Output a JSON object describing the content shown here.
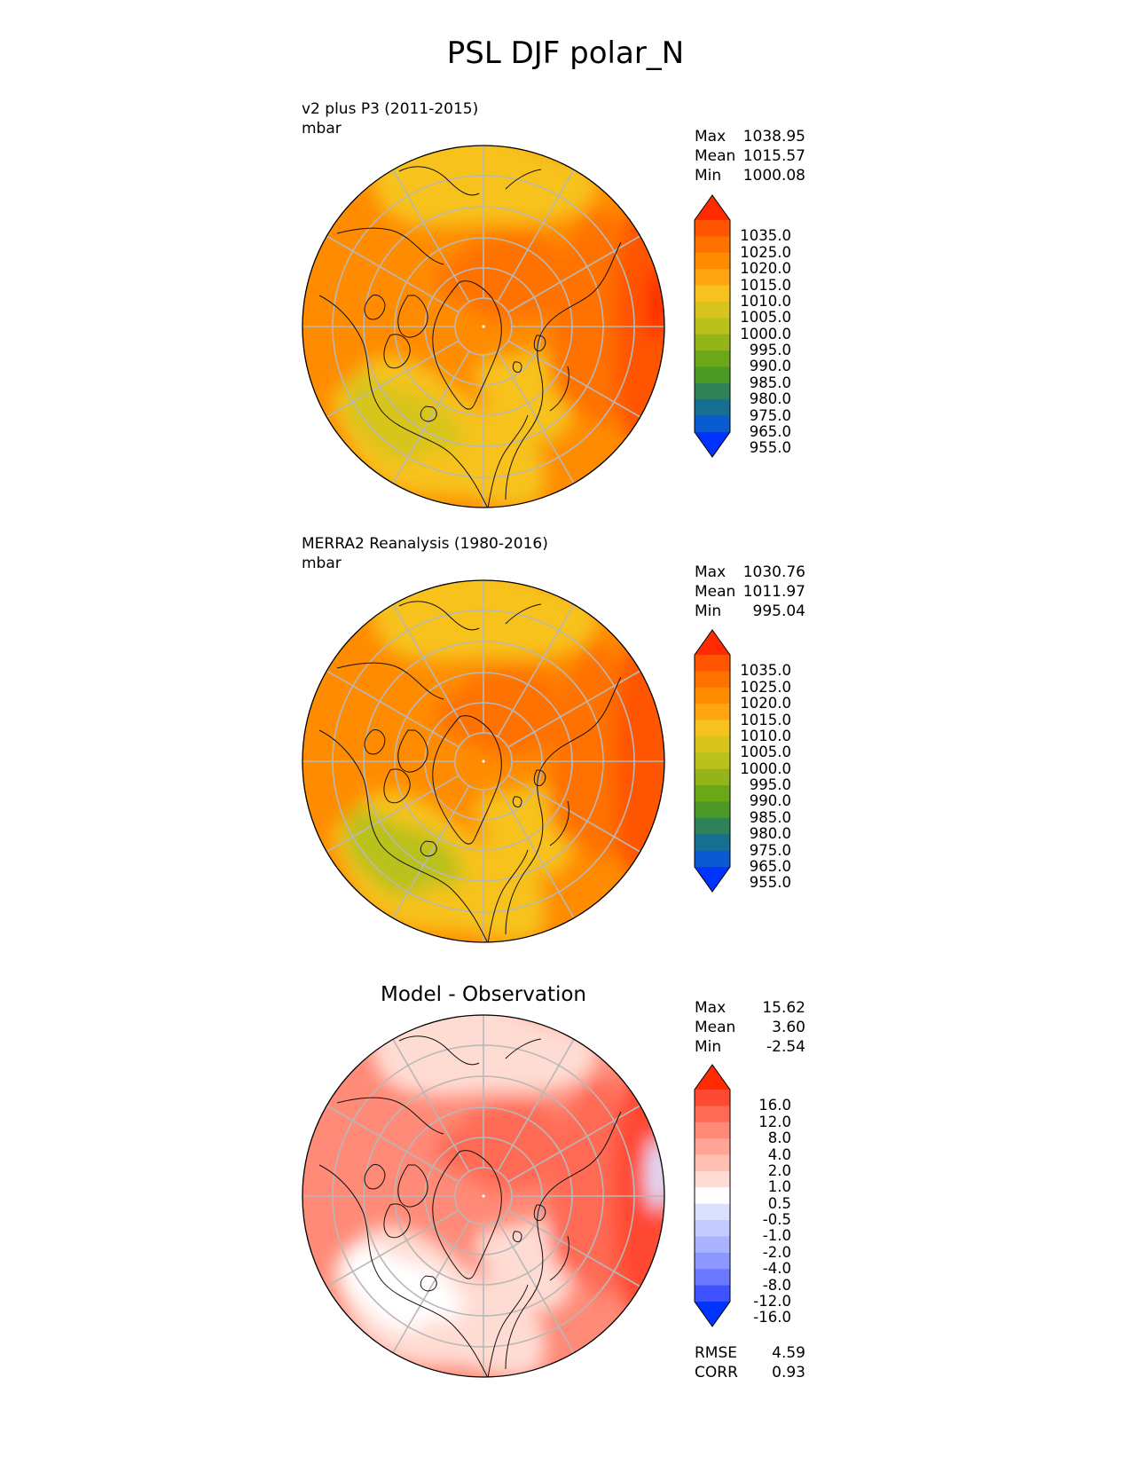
{
  "figure": {
    "title": "PSL DJF polar_N"
  },
  "panels": [
    {
      "id": "test",
      "title_lines": [
        "v2 plus P3 (2011-2015)",
        "mbar"
      ],
      "stats": [
        {
          "label": "Max",
          "value": "1038.95"
        },
        {
          "label": "Mean",
          "value": "1015.57"
        },
        {
          "label": "Min",
          "value": "1000.08"
        }
      ],
      "colorbar": {
        "ticks": [
          "1035.0",
          "1025.0",
          "1020.0",
          "1015.0",
          "1010.0",
          "1005.0",
          "1000.0",
          "995.0",
          "990.0",
          "985.0",
          "980.0",
          "975.0",
          "965.0",
          "955.0"
        ],
        "colors": [
          "#ff2a00",
          "#ff5500",
          "#ff7200",
          "#ff8c00",
          "#ffa512",
          "#f7c21e",
          "#d7c51e",
          "#b9c11a",
          "#95b41a",
          "#6aa818",
          "#4a9a25",
          "#2f8257",
          "#166f90",
          "#0a5ad2",
          "#0033ff"
        ]
      }
    },
    {
      "id": "reference",
      "title_lines": [
        "MERRA2 Reanalysis (1980-2016)",
        "mbar"
      ],
      "stats": [
        {
          "label": "Max",
          "value": "1030.76"
        },
        {
          "label": "Mean",
          "value": "1011.97"
        },
        {
          "label": "Min",
          "value": "995.04"
        }
      ],
      "colorbar": {
        "ticks": [
          "1035.0",
          "1025.0",
          "1020.0",
          "1015.0",
          "1010.0",
          "1005.0",
          "1000.0",
          "995.0",
          "990.0",
          "985.0",
          "980.0",
          "975.0",
          "965.0",
          "955.0"
        ],
        "colors": [
          "#ff2a00",
          "#ff5500",
          "#ff7200",
          "#ff8c00",
          "#ffa512",
          "#f7c21e",
          "#d7c51e",
          "#b9c11a",
          "#95b41a",
          "#6aa818",
          "#4a9a25",
          "#2f8257",
          "#166f90",
          "#0a5ad2",
          "#0033ff"
        ]
      }
    },
    {
      "id": "difference",
      "title_lines": [
        "Model - Observation"
      ],
      "stats": [
        {
          "label": "Max",
          "value": "15.62"
        },
        {
          "label": "Mean",
          "value": "3.60"
        },
        {
          "label": "Min",
          "value": "-2.54"
        }
      ],
      "colorbar": {
        "ticks": [
          "16.0",
          "12.0",
          "8.0",
          "4.0",
          "2.0",
          "1.0",
          "0.5",
          "-0.5",
          "-1.0",
          "-2.0",
          "-4.0",
          "-8.0",
          "-12.0",
          "-16.0"
        ],
        "colors": [
          "#ff2a00",
          "#ff4a33",
          "#ff6a55",
          "#ff8a77",
          "#ffa595",
          "#ffc0b3",
          "#ffdcd3",
          "#ffffff",
          "#dbe0ff",
          "#c4cbff",
          "#a9b3ff",
          "#8c98ff",
          "#6a79ff",
          "#3f52ff",
          "#0033ff"
        ]
      },
      "metrics": [
        {
          "label": "RMSE",
          "value": "4.59"
        },
        {
          "label": "CORR",
          "value": "0.93"
        }
      ]
    }
  ],
  "map_palette": {
    "test": {
      "base": "#ff8c00",
      "cool": "#f7c21e",
      "green": "#d7c51e",
      "warm": "#ff7200",
      "hot": "#ff5500",
      "peak": "#ff2a00"
    },
    "reference": {
      "base": "#ff8c00",
      "cool": "#f7c21e",
      "green": "#b9c11a",
      "warm": "#ff7200",
      "hot": "#ff5500",
      "peak": "#ff5500"
    },
    "difference": {
      "base": "#ff8a77",
      "cool": "#ffdcd3",
      "green": "#ffffff",
      "warm": "#ff6a55",
      "hot": "#ff4a33",
      "peak": "#dbe0ff"
    }
  }
}
